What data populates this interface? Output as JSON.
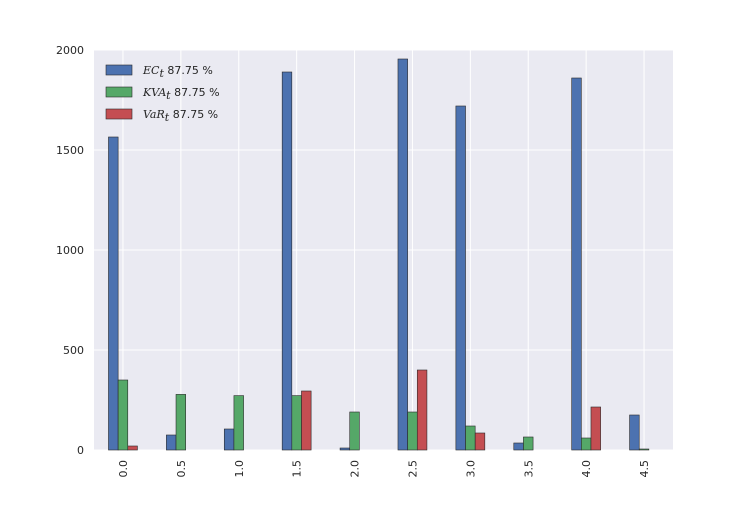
{
  "chart_data": {
    "type": "bar",
    "categories": [
      "0.0",
      "0.5",
      "1.0",
      "1.5",
      "2.0",
      "2.5",
      "3.0",
      "3.5",
      "4.0",
      "4.5"
    ],
    "series": [
      {
        "name": "EC_t 87.75 %",
        "legend_math": "EC",
        "legend_sub": "t",
        "legend_suffix": " 87.75 %",
        "color": "#4c72b0",
        "values": [
          1565,
          75,
          105,
          1890,
          10,
          1955,
          1720,
          35,
          1860,
          175
        ]
      },
      {
        "name": "KVA_t 87.75 %",
        "legend_math": "KVA",
        "legend_sub": "t",
        "legend_suffix": " 87.75 %",
        "color": "#55a868",
        "values": [
          350,
          278,
          272,
          272,
          190,
          190,
          120,
          65,
          60,
          5
        ]
      },
      {
        "name": "VaR_t 87.75 %",
        "legend_math": "VaR",
        "legend_sub": "t",
        "legend_suffix": " 87.75 %",
        "color": "#c44e52",
        "values": [
          20,
          0,
          0,
          295,
          0,
          400,
          85,
          0,
          215,
          0
        ]
      }
    ],
    "y_ticks": [
      "0",
      "500",
      "1000",
      "1500",
      "2000"
    ],
    "y_tick_values": [
      0,
      500,
      1000,
      1500,
      2000
    ],
    "ylim": [
      0,
      2000
    ],
    "grid": true,
    "legend_position": "top-left",
    "background": "#eaeaf2",
    "title": "",
    "xlabel": "",
    "ylabel": ""
  }
}
